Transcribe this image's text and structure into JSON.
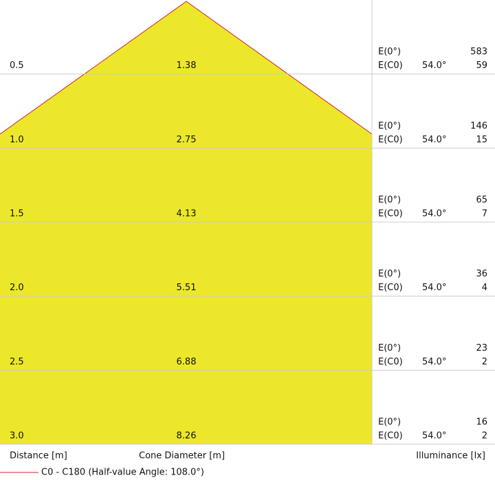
{
  "rows": [
    {
      "distance": "0.5",
      "diameter": "1.38",
      "e0_label": "E(0°)",
      "e0": "583",
      "ec0_label": "E(C0)",
      "angle": "54.0°",
      "ec0": "59"
    },
    {
      "distance": "1.0",
      "diameter": "2.75",
      "e0_label": "E(0°)",
      "e0": "146",
      "ec0_label": "E(C0)",
      "angle": "54.0°",
      "ec0": "15"
    },
    {
      "distance": "1.5",
      "diameter": "4.13",
      "e0_label": "E(0°)",
      "e0": "65",
      "ec0_label": "E(C0)",
      "angle": "54.0°",
      "ec0": "7"
    },
    {
      "distance": "2.0",
      "diameter": "5.51",
      "e0_label": "E(0°)",
      "e0": "36",
      "ec0_label": "E(C0)",
      "angle": "54.0°",
      "ec0": "4"
    },
    {
      "distance": "2.5",
      "diameter": "6.88",
      "e0_label": "E(0°)",
      "e0": "23",
      "ec0_label": "E(C0)",
      "angle": "54.0°",
      "ec0": "2"
    },
    {
      "distance": "3.0",
      "diameter": "8.26",
      "e0_label": "E(0°)",
      "e0": "16",
      "ec0_label": "E(C0)",
      "angle": "54.0°",
      "ec0": "2"
    }
  ],
  "footer": {
    "distance": "Distance [m]",
    "diameter": "Cone Diameter [m]",
    "illuminance": "Illuminance [lx]"
  },
  "legend": "C0 - C180 (Half-value Angle: 108.0°)"
}
